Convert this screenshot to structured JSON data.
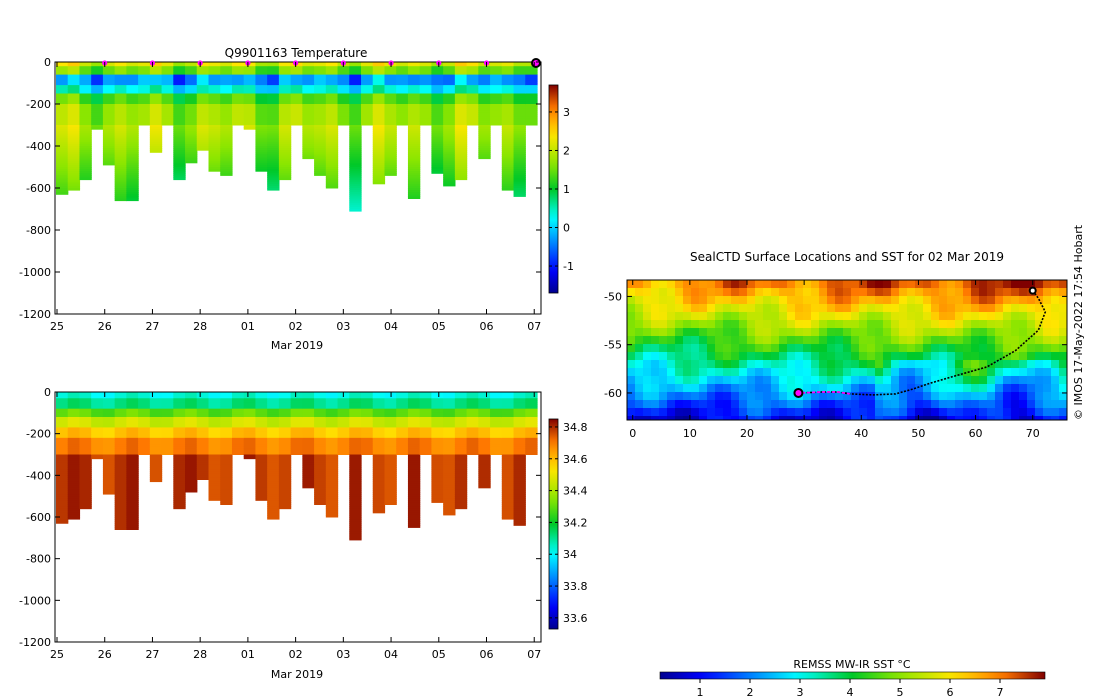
{
  "chart_data": [
    {
      "type": "heatmap",
      "title": "Q9901163  Temperature",
      "xlabel": "Mar 2019",
      "ylabel": "",
      "x_ticks": [
        "25",
        "26",
        "27",
        "28",
        "01",
        "02",
        "03",
        "04",
        "05",
        "06",
        "07"
      ],
      "x_range_days": [
        0,
        10.1
      ],
      "y_ticks": [
        0,
        -200,
        -400,
        -600,
        -800,
        -1000,
        -1200
      ],
      "ylim": [
        -1200,
        0
      ],
      "colorbar": {
        "ticks": [
          3,
          2,
          1,
          0,
          -1
        ],
        "range": [
          -1.7,
          3.7
        ]
      },
      "surface_marker_days": [
        1,
        2,
        3,
        4,
        5,
        6,
        7,
        8,
        9,
        10
      ],
      "profile_max_depths": [
        630,
        610,
        560,
        320,
        490,
        660,
        660,
        300,
        430,
        300,
        560,
        480,
        420,
        520,
        540,
        300,
        320,
        520,
        610,
        560,
        300,
        460,
        540,
        600,
        300,
        710,
        300,
        580,
        540,
        300,
        650,
        300,
        530,
        590,
        560,
        300,
        460,
        300,
        610,
        640,
        300
      ]
    },
    {
      "type": "heatmap",
      "title": "",
      "xlabel": "Mar 2019",
      "ylabel": "",
      "x_ticks": [
        "25",
        "26",
        "27",
        "28",
        "01",
        "02",
        "03",
        "04",
        "05",
        "06",
        "07"
      ],
      "x_range_days": [
        0,
        10.1
      ],
      "y_ticks": [
        0,
        -200,
        -400,
        -600,
        -800,
        -1000,
        -1200
      ],
      "ylim": [
        -1200,
        0
      ],
      "colorbar": {
        "ticks": [
          34.8,
          34.6,
          34.4,
          34.2,
          34,
          33.8,
          33.6
        ],
        "range": [
          33.53,
          34.85
        ]
      },
      "profile_max_depths": [
        630,
        610,
        560,
        320,
        490,
        660,
        660,
        300,
        430,
        300,
        560,
        480,
        420,
        520,
        540,
        300,
        320,
        520,
        610,
        560,
        300,
        460,
        540,
        600,
        300,
        710,
        300,
        580,
        540,
        300,
        650,
        300,
        530,
        590,
        560,
        300,
        460,
        300,
        610,
        640,
        300
      ]
    },
    {
      "type": "heatmap",
      "title": "SealCTD Surface Locations and SST for 02 Mar 2019",
      "xlabel": "",
      "ylabel": "",
      "x_ticks": [
        0,
        10,
        20,
        30,
        40,
        50,
        60,
        70
      ],
      "xlim": [
        -1,
        76
      ],
      "y_ticks": [
        -50,
        -55,
        -60
      ],
      "ylim": [
        -62.8,
        -48.3
      ],
      "track": [
        [
          70,
          -49.4
        ],
        [
          71,
          -50.2
        ],
        [
          72.2,
          -51.6
        ],
        [
          71,
          -53.5
        ],
        [
          67,
          -55.6
        ],
        [
          62,
          -57.3
        ],
        [
          56,
          -58.3
        ],
        [
          52,
          -59.0
        ],
        [
          49,
          -59.6
        ],
        [
          46,
          -60.1
        ],
        [
          42,
          -60.2
        ],
        [
          38,
          -60.1
        ],
        [
          36,
          -59.9
        ],
        [
          33,
          -59.9
        ],
        [
          29,
          -60.0
        ]
      ],
      "track_highlight_range": [
        29,
        39
      ],
      "track_start": [
        29,
        -60.0
      ],
      "track_end": [
        70,
        -49.4
      ],
      "credit": "©  IMOS 17-May-2022 17:54 Hobart"
    },
    {
      "type": "colorbar",
      "title": "REMSS MW-IR SST °C",
      "ticks": [
        1,
        2,
        3,
        4,
        5,
        6,
        7
      ],
      "range": [
        0.2,
        7.9
      ]
    }
  ]
}
